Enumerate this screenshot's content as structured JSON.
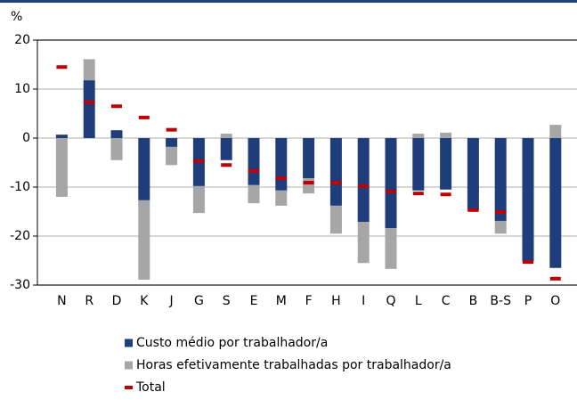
{
  "chart_data": {
    "type": "bar",
    "stacked": true,
    "y_label": "%",
    "categories": [
      "N",
      "R",
      "D",
      "K",
      "J",
      "G",
      "S",
      "E",
      "M",
      "F",
      "H",
      "I",
      "Q",
      "L",
      "C",
      "B",
      "B-S",
      "P",
      "O"
    ],
    "series": [
      {
        "name": "Custo médio por trabalhador/a",
        "color": "#1f3d7a",
        "values": [
          0.7,
          11.8,
          1.6,
          -12.7,
          -1.8,
          -9.8,
          -4.5,
          -9.6,
          -10.7,
          -8.2,
          -13.8,
          -17.1,
          -18.4,
          -10.7,
          -10.5,
          -14.7,
          -16.9,
          -25.1,
          -26.5
        ]
      },
      {
        "name": "Horas efetivamente trabalhadas por trabalhador/a",
        "color": "#a6a6a6",
        "values": [
          -12.0,
          4.3,
          -4.5,
          -16.2,
          -3.7,
          -5.5,
          0.9,
          -3.7,
          -3.1,
          -3.1,
          -5.7,
          -8.4,
          -8.3,
          0.9,
          1.1,
          -0.3,
          -2.6,
          -0.2,
          2.7
        ]
      },
      {
        "name": "Total",
        "color": "#c00000",
        "marker": "dash",
        "values": [
          14.5,
          7.3,
          6.5,
          4.2,
          1.7,
          -4.7,
          -5.5,
          -6.7,
          -8.2,
          -9.1,
          -9.1,
          -9.8,
          -10.9,
          -11.3,
          -11.5,
          -14.7,
          -15.1,
          -25.3,
          -28.7
        ]
      }
    ],
    "ylim": [
      -30,
      20
    ],
    "yticks": [
      -30,
      -20,
      -10,
      0,
      10,
      20
    ],
    "grid": true
  }
}
